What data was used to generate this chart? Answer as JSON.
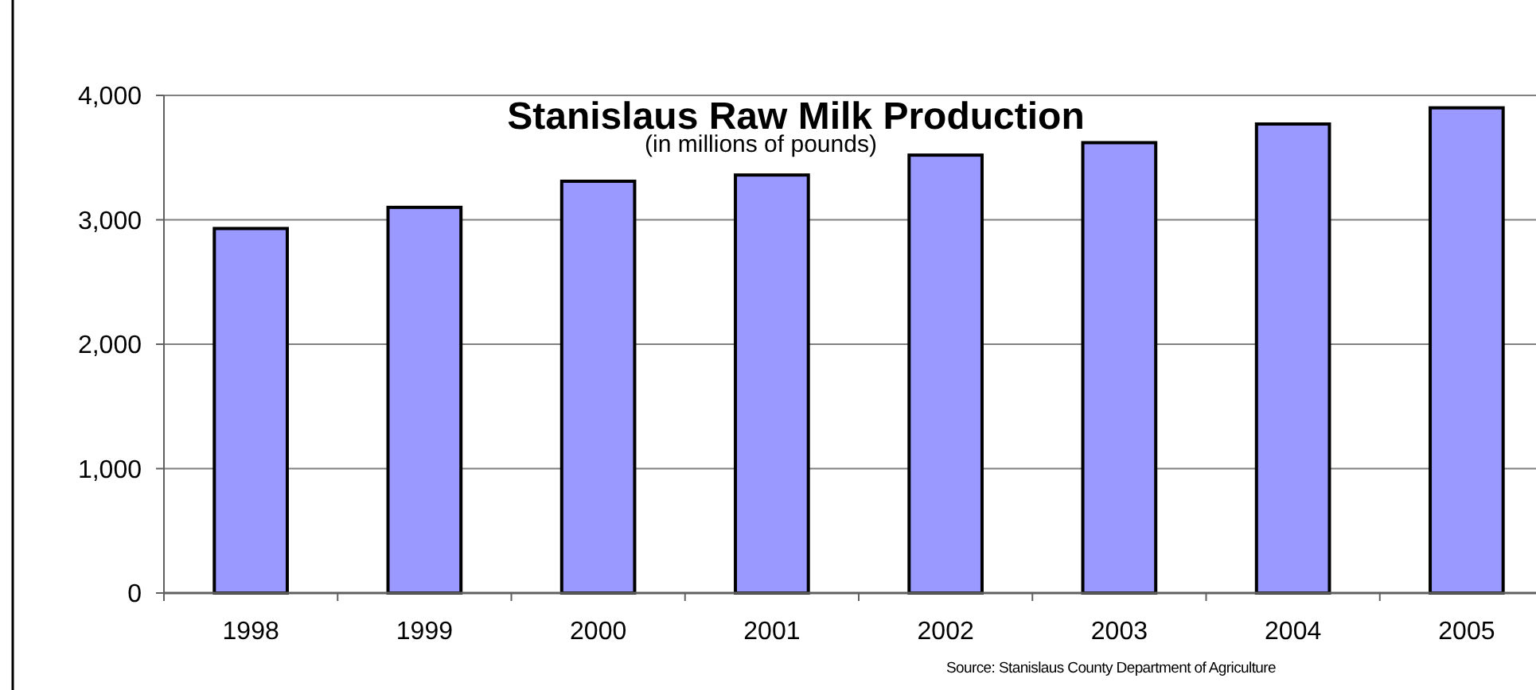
{
  "chart_data": {
    "type": "bar",
    "title": "Stanislaus Raw Milk Production",
    "subtitle": "(in millions of pounds)",
    "categories": [
      "1998",
      "1999",
      "2000",
      "2001",
      "2002",
      "2003",
      "2004",
      "2005"
    ],
    "values": [
      2930,
      3100,
      3310,
      3360,
      3520,
      3620,
      3770,
      3900
    ],
    "color": "#9999ff",
    "ylim": [
      0,
      4000
    ],
    "yticks": [
      {
        "value": 0,
        "label": "0"
      },
      {
        "value": 1000,
        "label": "1,000"
      },
      {
        "value": 2000,
        "label": "2,000"
      },
      {
        "value": 3000,
        "label": "3,000"
      },
      {
        "value": 4000,
        "label": "4,000"
      }
    ],
    "grid": "y",
    "annotations": [
      "Source: Stanislaus County Department of Agriculture"
    ]
  }
}
